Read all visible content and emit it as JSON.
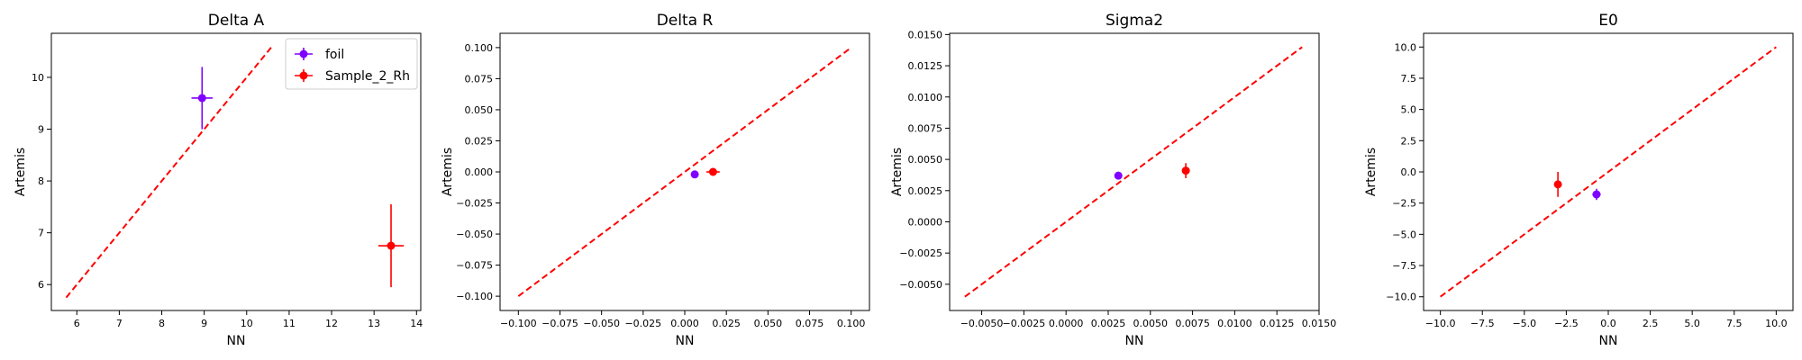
{
  "figure": {
    "ylabel_common": "Artemis",
    "xlabel_common": "NN"
  },
  "chart_data": [
    {
      "type": "scatter",
      "title": "Delta A",
      "xlabel": "NN",
      "ylabel": "Artemis",
      "xlim": [
        5.4,
        14.1
      ],
      "ylim": [
        5.5,
        10.85
      ],
      "xticks": [
        6,
        7,
        8,
        9,
        10,
        11,
        12,
        13,
        14
      ],
      "xticklabels": [
        "6",
        "7",
        "8",
        "9",
        "10",
        "11",
        "12",
        "13",
        "14"
      ],
      "yticks": [
        6,
        7,
        8,
        9,
        10
      ],
      "yticklabels": [
        "6",
        "7",
        "8",
        "9",
        "10"
      ],
      "reference_line": {
        "x": [
          5.75,
          10.6
        ],
        "y": [
          5.75,
          10.6
        ],
        "color": "#ff0000",
        "style": "dashed"
      },
      "legend": {
        "location": "upper right",
        "entries": [
          "foil",
          "Sample_2_Rh"
        ]
      },
      "series": [
        {
          "name": "foil",
          "color": "#7f00ff",
          "x": [
            8.95
          ],
          "y": [
            9.6
          ],
          "xerr": [
            0.25
          ],
          "yerr": [
            0.6
          ]
        },
        {
          "name": "Sample_2_Rh",
          "color": "#ff0000",
          "x": [
            13.4
          ],
          "y": [
            6.75
          ],
          "xerr": [
            0.3
          ],
          "yerr": [
            0.8
          ]
        }
      ]
    },
    {
      "type": "scatter",
      "title": "Delta R",
      "xlabel": "NN",
      "ylabel": "Artemis",
      "xlim": [
        -0.111,
        0.111
      ],
      "ylim": [
        -0.1115,
        0.1115
      ],
      "xticks": [
        -0.1,
        -0.075,
        -0.05,
        -0.025,
        0,
        0.025,
        0.05,
        0.075,
        0.1
      ],
      "xticklabels": [
        "−0.100",
        "−0.075",
        "−0.050",
        "−0.025",
        "0.000",
        "0.025",
        "0.050",
        "0.075",
        "0.100"
      ],
      "yticks": [
        -0.1,
        -0.075,
        -0.05,
        -0.025,
        0,
        0.025,
        0.05,
        0.075,
        0.1
      ],
      "yticklabels": [
        "−0.100",
        "−0.075",
        "−0.050",
        "−0.025",
        "0.000",
        "0.025",
        "0.050",
        "0.075",
        "0.100"
      ],
      "reference_line": {
        "x": [
          -0.1,
          0.1
        ],
        "y": [
          -0.1,
          0.1
        ],
        "color": "#ff0000",
        "style": "dashed"
      },
      "series": [
        {
          "name": "foil",
          "color": "#7f00ff",
          "x": [
            0.006
          ],
          "y": [
            -0.002
          ],
          "xerr": [
            0.001
          ],
          "yerr": [
            0.002
          ]
        },
        {
          "name": "Sample_2_Rh",
          "color": "#ff0000",
          "x": [
            0.017
          ],
          "y": [
            0.0
          ],
          "xerr": [
            0.004
          ],
          "yerr": [
            0.003
          ]
        }
      ]
    },
    {
      "type": "scatter",
      "title": "Sigma2",
      "xlabel": "NN",
      "ylabel": "Artemis",
      "xlim": [
        -0.0069,
        0.015
      ],
      "ylim": [
        -0.0071,
        0.0151
      ],
      "xticks": [
        -0.005,
        -0.0025,
        0,
        0.0025,
        0.005,
        0.0075,
        0.01,
        0.0125,
        0.015
      ],
      "xticklabels": [
        "−0.0050",
        "−0.0025",
        "0.0000",
        "0.0025",
        "0.0050",
        "0.0075",
        "0.0100",
        "0.0125",
        "0.0150"
      ],
      "yticks": [
        -0.005,
        -0.0025,
        0,
        0.0025,
        0.005,
        0.0075,
        0.01,
        0.0125,
        0.015
      ],
      "yticklabels": [
        "−0.0050",
        "−0.0025",
        "0.0000",
        "0.0025",
        "0.0050",
        "0.0075",
        "0.0100",
        "0.0125",
        "0.0150"
      ],
      "reference_line": {
        "x": [
          -0.006,
          0.014
        ],
        "y": [
          -0.006,
          0.014
        ],
        "color": "#ff0000",
        "style": "dashed"
      },
      "series": [
        {
          "name": "foil",
          "color": "#7f00ff",
          "x": [
            0.0031
          ],
          "y": [
            0.0037
          ],
          "xerr": [
            0.0002
          ],
          "yerr": [
            0.0003
          ]
        },
        {
          "name": "Sample_2_Rh",
          "color": "#ff0000",
          "x": [
            0.0071
          ],
          "y": [
            0.0041
          ],
          "xerr": [
            0.0002
          ],
          "yerr": [
            0.0006
          ]
        }
      ]
    },
    {
      "type": "scatter",
      "title": "E0",
      "xlabel": "NN",
      "ylabel": "Artemis",
      "xlim": [
        -11.0,
        11.0
      ],
      "ylim": [
        -11.1,
        11.1
      ],
      "xticks": [
        -10,
        -7.5,
        -5,
        -2.5,
        0,
        2.5,
        5,
        7.5,
        10
      ],
      "xticklabels": [
        "−10.0",
        "−7.5",
        "−5.0",
        "−2.5",
        "0.0",
        "2.5",
        "5.0",
        "7.5",
        "10.0"
      ],
      "yticks": [
        -10,
        -7.5,
        -5,
        -2.5,
        0,
        2.5,
        5,
        7.5,
        10
      ],
      "yticklabels": [
        "−10.0",
        "−7.5",
        "−5.0",
        "−2.5",
        "0.0",
        "2.5",
        "5.0",
        "7.5",
        "10.0"
      ],
      "reference_line": {
        "x": [
          -10,
          10
        ],
        "y": [
          -10,
          10
        ],
        "color": "#ff0000",
        "style": "dashed"
      },
      "series": [
        {
          "name": "foil",
          "color": "#7f00ff",
          "x": [
            -0.7
          ],
          "y": [
            -1.8
          ],
          "xerr": [
            0.25
          ],
          "yerr": [
            0.45
          ]
        },
        {
          "name": "Sample_2_Rh",
          "color": "#ff0000",
          "x": [
            -3.0
          ],
          "y": [
            -1.0
          ],
          "xerr": [
            0.2
          ],
          "yerr": [
            1.0
          ]
        }
      ]
    }
  ]
}
